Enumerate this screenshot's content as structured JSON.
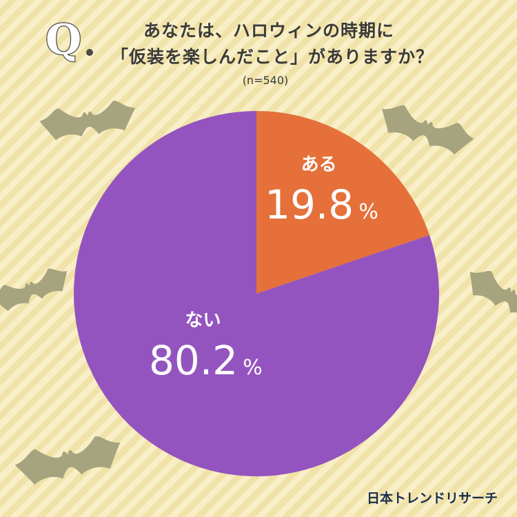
{
  "header": {
    "q_mark": "Q",
    "title_line1": "あなたは、ハロウィンの時期に",
    "title_line2": "「仮装を楽しんだこと」がありますか？",
    "sample_size": "(n=540)"
  },
  "chart_data": {
    "type": "pie",
    "start_angle": "12 o'clock",
    "direction": "clockwise",
    "slices": [
      {
        "label": "ある",
        "value": 19.8,
        "value_text": "19.8",
        "unit": "%",
        "color": "#e5703a"
      },
      {
        "label": "ない",
        "value": 80.2,
        "value_text": "80.2",
        "unit": "%",
        "color": "#9454bf"
      }
    ],
    "label_color": "#ffffff"
  },
  "decorations": {
    "bat_color": "#a6a47e",
    "bat_count": 5
  },
  "brand": "日本トレンドリサーチ"
}
